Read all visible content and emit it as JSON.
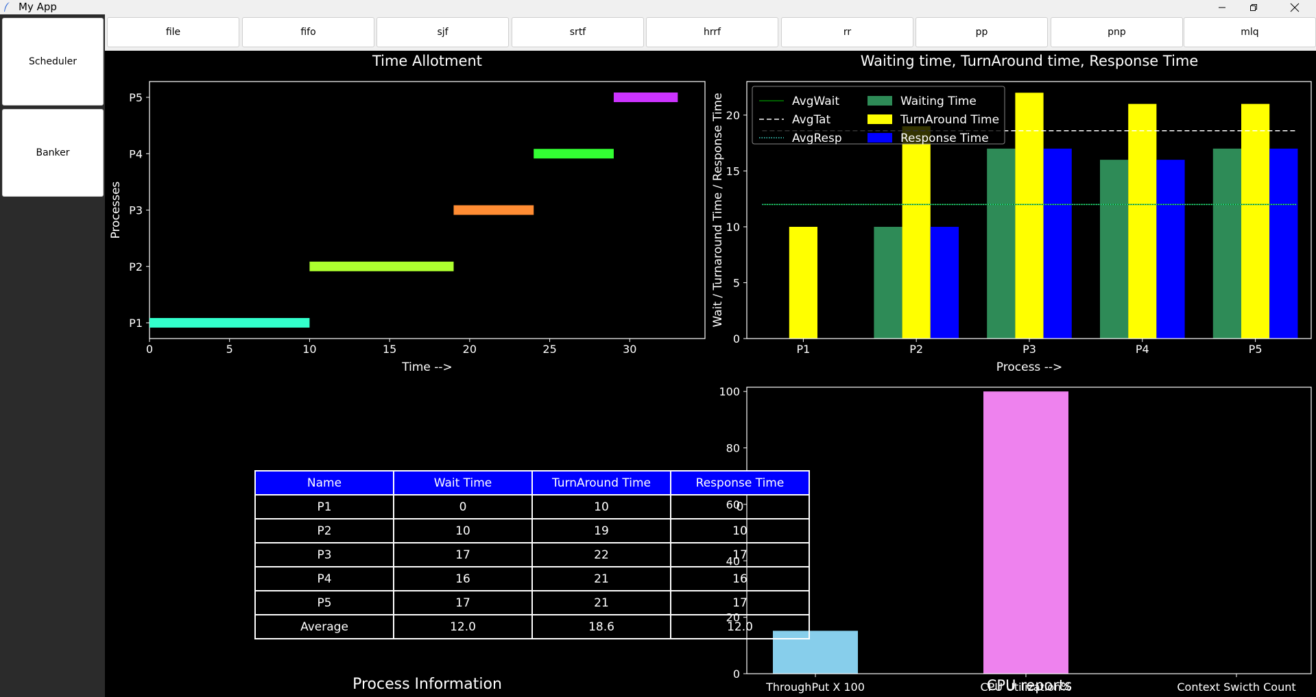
{
  "window": {
    "title": "My App"
  },
  "sidebar": {
    "items": [
      {
        "label": "Scheduler"
      },
      {
        "label": "Banker"
      }
    ]
  },
  "toolbar": {
    "items": [
      {
        "label": "file"
      },
      {
        "label": "fifo"
      },
      {
        "label": "sjf"
      },
      {
        "label": "srtf"
      },
      {
        "label": "hrrf"
      },
      {
        "label": "rr"
      },
      {
        "label": "pp"
      },
      {
        "label": "pnp"
      },
      {
        "label": "mlq"
      }
    ]
  },
  "colors": {
    "background": "#000000",
    "header": "#0000ff"
  },
  "chart_data": [
    {
      "type": "gantt",
      "title": "Time Allotment",
      "xlabel": "Time -->",
      "ylabel": "Processes",
      "xlim": [
        0,
        34.7
      ],
      "xticks": [
        0,
        5,
        10,
        15,
        20,
        25,
        30
      ],
      "categories": [
        "P1",
        "P2",
        "P3",
        "P4",
        "P5"
      ],
      "bars": [
        {
          "process": "P1",
          "start": 0,
          "end": 10,
          "color": "#33ffcc"
        },
        {
          "process": "P2",
          "start": 10,
          "end": 19,
          "color": "#adff2f"
        },
        {
          "process": "P3",
          "start": 19,
          "end": 24,
          "color": "#ff8c33"
        },
        {
          "process": "P4",
          "start": 24,
          "end": 29,
          "color": "#33ff33"
        },
        {
          "process": "P5",
          "start": 29,
          "end": 33,
          "color": "#cc33ff"
        }
      ]
    },
    {
      "type": "bar",
      "title": "Waiting time, TurnAround time, Response Time",
      "xlabel": "Process -->",
      "ylabel": "Wait / Turnaround Time / Response Time",
      "ylim": [
        0,
        23
      ],
      "yticks": [
        0,
        5,
        10,
        15,
        20
      ],
      "categories": [
        "P1",
        "P2",
        "P3",
        "P4",
        "P5"
      ],
      "series": [
        {
          "name": "Waiting Time",
          "values": [
            0,
            10,
            17,
            16,
            17
          ],
          "color": "#2e8b57"
        },
        {
          "name": "TurnAround Time",
          "values": [
            10,
            19,
            22,
            21,
            21
          ],
          "color": "#ffff00"
        },
        {
          "name": "Response Time",
          "values": [
            0,
            10,
            17,
            16,
            17
          ],
          "color": "#0000ff"
        }
      ],
      "lines": [
        {
          "name": "AvgWait",
          "value": 12.0,
          "color": "#008000",
          "style": "solid"
        },
        {
          "name": "AvgTat",
          "value": 18.6,
          "color": "#ffffff",
          "style": "dashed"
        },
        {
          "name": "AvgResp",
          "value": 12.0,
          "color": "#40e0d0",
          "style": "dotted"
        }
      ],
      "legend": "top-left"
    },
    {
      "type": "bar",
      "title": "CPU reports",
      "ylim": [
        0,
        101.5
      ],
      "yticks": [
        0,
        20,
        40,
        60,
        80,
        100
      ],
      "categories": [
        "ThroughPut X 100",
        "CPU Utilization%",
        "Context Swicth Count"
      ],
      "values": [
        15.2,
        100,
        0
      ],
      "colors": [
        "#87ceeb",
        "#ee82ee",
        "#ffa500"
      ]
    },
    {
      "type": "table",
      "title": "Process Information",
      "columns": [
        "Name",
        "Wait Time",
        "TurnAround Time",
        "Response Time"
      ],
      "rows": [
        [
          "P1",
          "0",
          "10",
          "0"
        ],
        [
          "P2",
          "10",
          "19",
          "10"
        ],
        [
          "P3",
          "17",
          "22",
          "17"
        ],
        [
          "P4",
          "16",
          "21",
          "16"
        ],
        [
          "P5",
          "17",
          "21",
          "17"
        ],
        [
          "Average",
          "12.0",
          "18.6",
          "12.0"
        ]
      ]
    }
  ]
}
